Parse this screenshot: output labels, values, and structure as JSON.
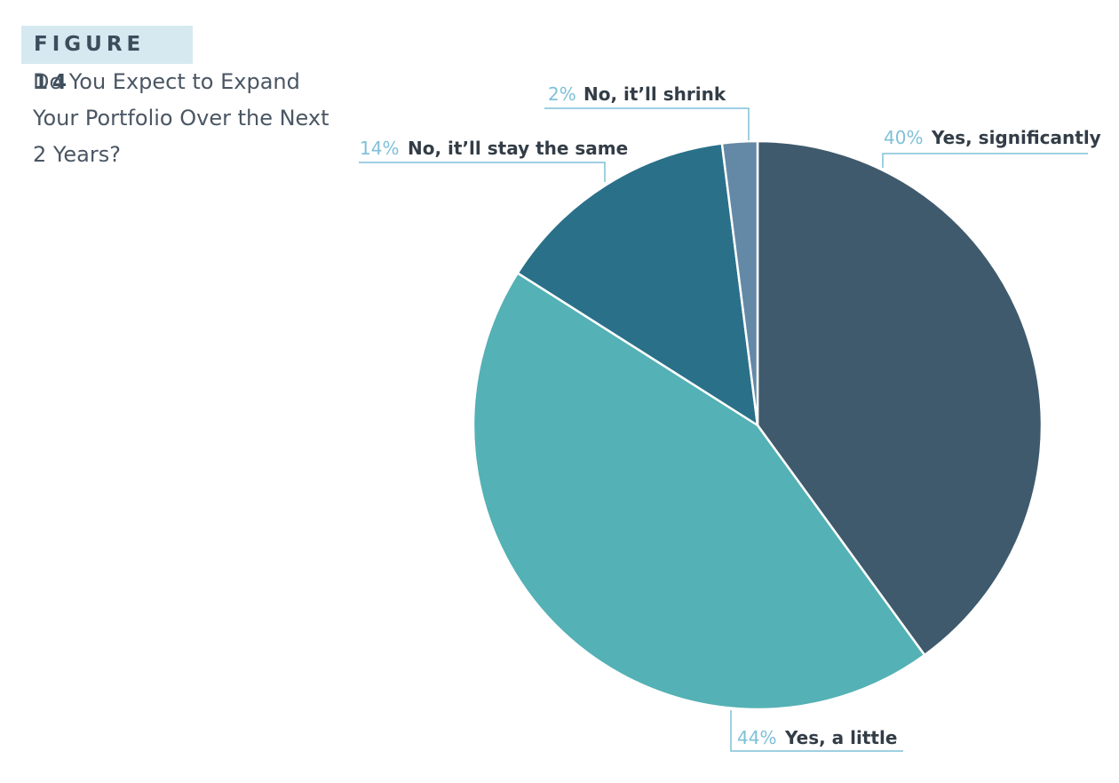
{
  "figure_label": "FIGURE 14",
  "title_lines": [
    "Do You Expect to Expand",
    "Your Portfolio Over the Next",
    "2 Years?"
  ],
  "chart_data": {
    "type": "pie",
    "title": "Do You Expect to Expand Your Portfolio Over the Next 2 Years?",
    "start": "12 o'clock",
    "direction": "clockwise",
    "slices": [
      {
        "label": "Yes, significantly",
        "value": 40,
        "value_label": "40%",
        "color": "#3f5a6d"
      },
      {
        "label": "Yes, a little",
        "value": 44,
        "value_label": "44%",
        "color": "#54b1b5"
      },
      {
        "label": "No, it’ll stay the same",
        "value": 14,
        "value_label": "14%",
        "color": "#2a7089"
      },
      {
        "label": "No, it’ll shrink",
        "value": 2,
        "value_label": "2%",
        "color": "#6489a6"
      }
    ],
    "label_color": "#7ec0d8"
  }
}
